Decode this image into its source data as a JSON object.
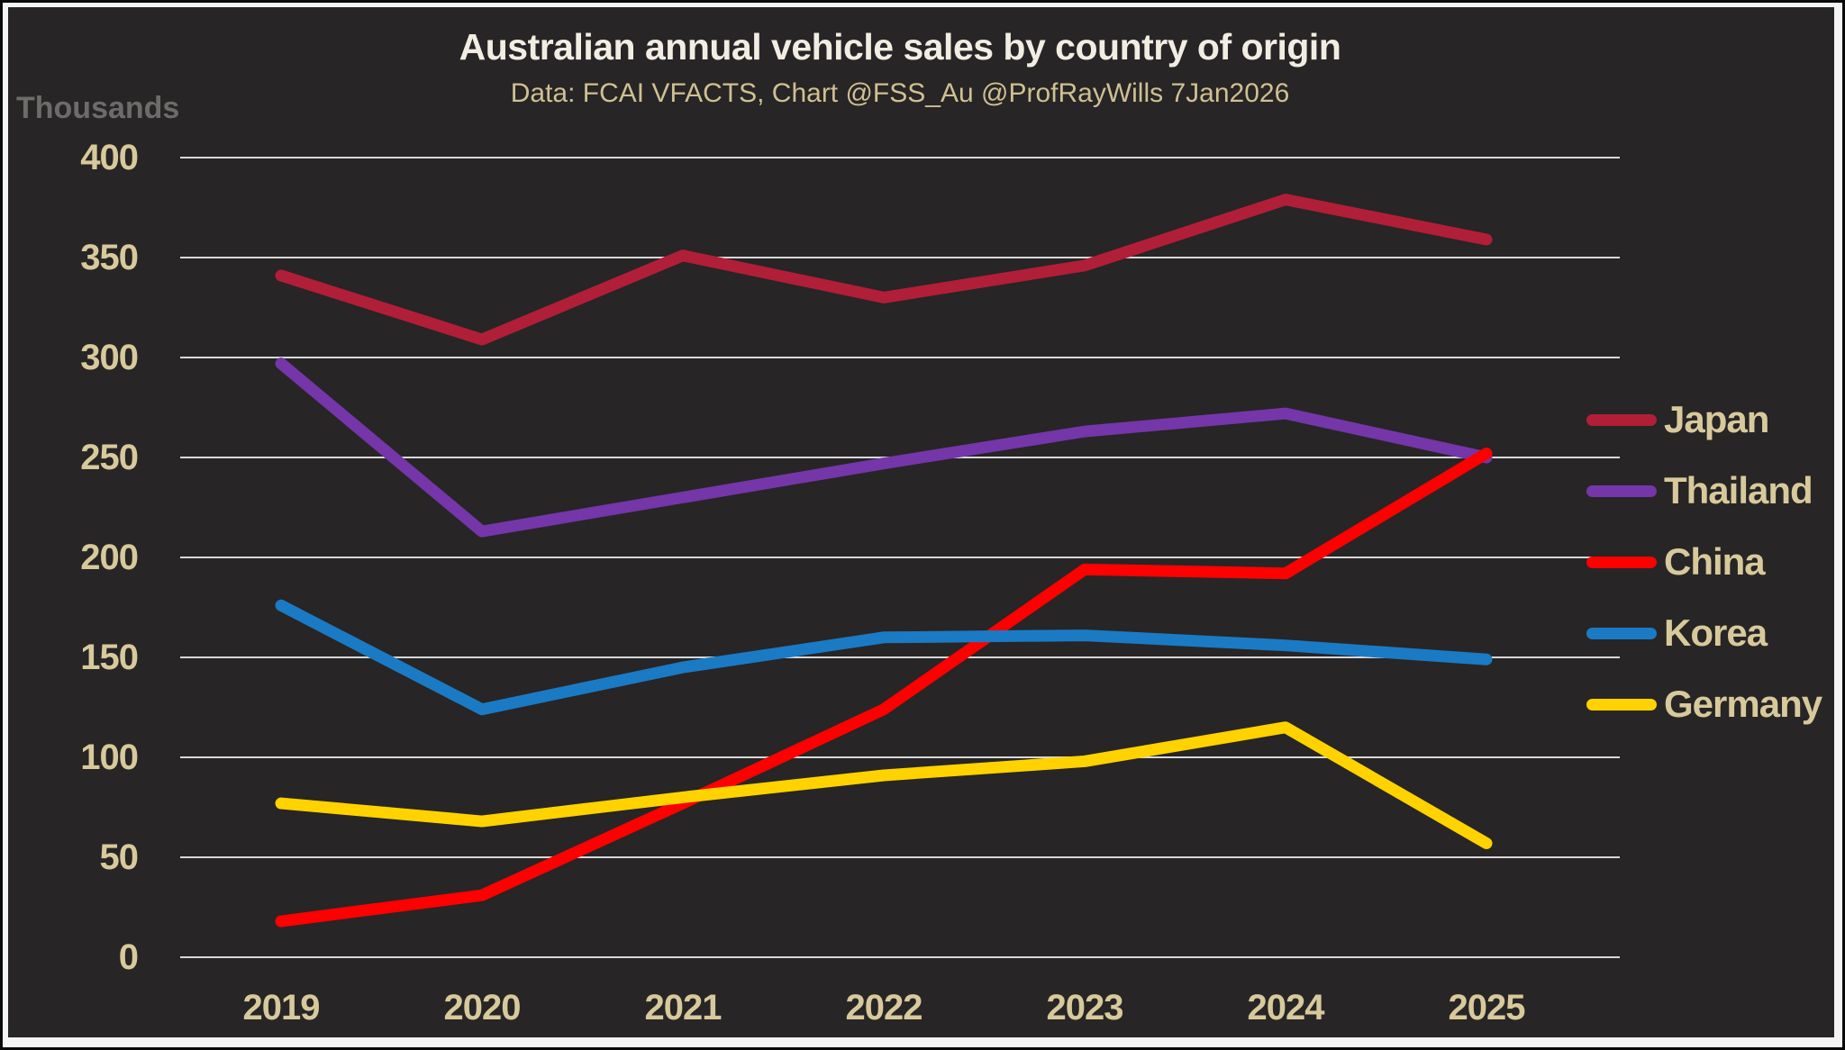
{
  "header": {
    "title": "Australian annual vehicle sales by country of origin",
    "subtitle": "Data: FCAI VFACTS, Chart @FSS_Au @ProfRayWills 7Jan2026"
  },
  "y_axis": {
    "unit_label": "Thousands",
    "tick_labels": [
      "0",
      "50",
      "100",
      "150",
      "200",
      "250",
      "300",
      "350",
      "400"
    ]
  },
  "colors": {
    "background": "#272525",
    "gridline": "#d8d8d8",
    "title_text": "#f2ede2",
    "tan_text": "#d8c99c",
    "unit_text": "#6e6c6a"
  },
  "chart_data": {
    "type": "line",
    "title": "Australian annual vehicle sales by country of origin",
    "subtitle": "Data: FCAI VFACTS, Chart @FSS_Au @ProfRayWills 7Jan2026",
    "ylabel": "Thousands",
    "ylim": [
      0,
      400
    ],
    "ytick_step": 50,
    "grid": "horizontal",
    "legend_position": "right",
    "categories": [
      "2019",
      "2020",
      "2021",
      "2022",
      "2023",
      "2024",
      "2025"
    ],
    "series": [
      {
        "name": "Japan",
        "color": "#b11e38",
        "values": [
          341,
          309,
          351,
          330,
          346,
          379,
          359
        ]
      },
      {
        "name": "Thailand",
        "color": "#7436a8",
        "values": [
          297,
          213,
          230,
          247,
          263,
          272,
          250
        ]
      },
      {
        "name": "China",
        "color": "#fe0000",
        "values": [
          18,
          31,
          77,
          124,
          194,
          192,
          252
        ]
      },
      {
        "name": "Korea",
        "color": "#1b7ac4",
        "values": [
          176,
          124,
          145,
          160,
          161,
          156,
          149
        ]
      },
      {
        "name": "Germany",
        "color": "#ffd200",
        "values": [
          77,
          68,
          80,
          91,
          98,
          115,
          57
        ]
      }
    ]
  }
}
